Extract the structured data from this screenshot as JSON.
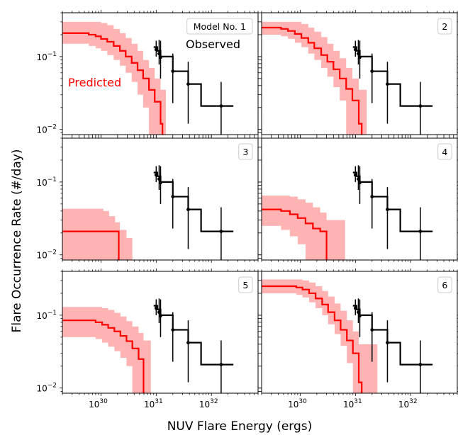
{
  "figure": {
    "xlabel": "NUV Flare Energy (ergs)",
    "ylabel": "Flare Occurrence Rate (#/day)",
    "x_ticks": [
      {
        "base": "10",
        "exp": "30",
        "value": 1e+30
      },
      {
        "base": "10",
        "exp": "31",
        "value": 1e+31
      },
      {
        "base": "10",
        "exp": "32",
        "value": 1e+32
      }
    ],
    "y_ticks": [
      {
        "base": "10",
        "exp": "−1",
        "value": 0.1
      },
      {
        "base": "10",
        "exp": "−2",
        "value": 0.01
      }
    ],
    "annotations": {
      "observed": "Observed",
      "predicted": "Predicted"
    }
  },
  "chart_data": [
    {
      "type": "line",
      "panel_label": "Model No. 1",
      "xscale": "log",
      "yscale": "log",
      "xlim": [
        2e+29,
        7e+32
      ],
      "ylim": [
        0.0085,
        0.4
      ],
      "observed": {
        "color": "#000000",
        "step_x": [
          9e+30,
          1.05e+31,
          1.2e+31,
          2e+31,
          3.8e+31,
          6.5e+31,
          2.5e+32
        ],
        "step_y": [
          0.135,
          0.12,
          0.1,
          0.063,
          0.042,
          0.021
        ],
        "points": [
          {
            "x": 1e+31,
            "y": 0.125,
            "yerr": [
              0.1,
              0.165
            ]
          },
          {
            "x": 1.13e+31,
            "y": 0.11,
            "yerr": [
              0.078,
              0.17
            ]
          },
          {
            "x": 1.2e+31,
            "y": 0.098,
            "yerr": [
              0.05,
              0.165
            ]
          },
          {
            "x": 2e+31,
            "y": 0.063,
            "yerr": [
              0.023,
              0.11
            ]
          },
          {
            "x": 3.8e+31,
            "y": 0.042,
            "yerr": [
              0.012,
              0.085
            ]
          },
          {
            "x": 1.5e+32,
            "y": 0.021,
            "yerr": [
              0.0085,
              0.045
            ]
          }
        ]
      },
      "predicted": {
        "color": "#ff0000",
        "band_color": "#ffb3b3",
        "step_x": [
          2e+29,
          6e+29,
          8e+29,
          1e+30,
          1.3e+30,
          1.7e+30,
          2.2e+30,
          2.8e+30,
          3.6e+30,
          4.6e+30,
          5.8e+30,
          7.4e+30,
          9.4e+30,
          1.2e+31,
          1.3e+31
        ],
        "step_y": [
          0.21,
          0.2,
          0.19,
          0.175,
          0.16,
          0.14,
          0.12,
          0.1,
          0.082,
          0.065,
          0.05,
          0.035,
          0.024,
          0.012
        ],
        "band_upper": [
          0.3,
          0.3,
          0.3,
          0.29,
          0.27,
          0.24,
          0.21,
          0.18,
          0.15,
          0.12,
          0.09,
          0.07,
          0.05,
          0.035
        ],
        "band_lower": [
          0.15,
          0.14,
          0.13,
          0.12,
          0.105,
          0.09,
          0.075,
          0.06,
          0.045,
          0.03,
          0.02,
          0.0085,
          0.0085,
          0.0085
        ],
        "band_x_end": 1.5e+31
      }
    },
    {
      "type": "line",
      "panel_label": "2",
      "xscale": "log",
      "yscale": "log",
      "xlim": [
        2e+29,
        7e+32
      ],
      "ylim": [
        0.0085,
        0.4
      ],
      "observed": {
        "color": "#000000",
        "step_x": [
          9e+30,
          1.05e+31,
          1.2e+31,
          2e+31,
          3.8e+31,
          6.5e+31,
          2.5e+32
        ],
        "step_y": [
          0.135,
          0.12,
          0.1,
          0.063,
          0.042,
          0.021
        ],
        "points": [
          {
            "x": 1e+31,
            "y": 0.125,
            "yerr": [
              0.1,
              0.165
            ]
          },
          {
            "x": 1.13e+31,
            "y": 0.11,
            "yerr": [
              0.078,
              0.17
            ]
          },
          {
            "x": 1.2e+31,
            "y": 0.098,
            "yerr": [
              0.05,
              0.165
            ]
          },
          {
            "x": 2e+31,
            "y": 0.063,
            "yerr": [
              0.023,
              0.11
            ]
          },
          {
            "x": 3.8e+31,
            "y": 0.042,
            "yerr": [
              0.012,
              0.085
            ]
          },
          {
            "x": 1.5e+32,
            "y": 0.021,
            "yerr": [
              0.0085,
              0.045
            ]
          }
        ]
      },
      "predicted": {
        "color": "#ff0000",
        "band_color": "#ffb3b3",
        "step_x": [
          2e+29,
          4.5e+29,
          6e+29,
          8e+29,
          1.05e+30,
          1.4e+30,
          1.8e+30,
          2.4e+30,
          3.1e+30,
          4e+30,
          5.2e+30,
          6.8e+30,
          8.8e+30,
          1.15e+31,
          1.3e+31
        ],
        "step_y": [
          0.25,
          0.24,
          0.225,
          0.205,
          0.18,
          0.155,
          0.13,
          0.105,
          0.085,
          0.067,
          0.05,
          0.036,
          0.025,
          0.012
        ],
        "band_upper": [
          0.3,
          0.3,
          0.3,
          0.3,
          0.28,
          0.25,
          0.22,
          0.185,
          0.15,
          0.12,
          0.095,
          0.07,
          0.05,
          0.035
        ],
        "band_lower": [
          0.2,
          0.19,
          0.175,
          0.155,
          0.135,
          0.11,
          0.09,
          0.07,
          0.053,
          0.038,
          0.025,
          0.0085,
          0.0085,
          0.0085
        ],
        "band_x_end": 1.6e+31
      }
    },
    {
      "type": "line",
      "panel_label": "3",
      "xscale": "log",
      "yscale": "log",
      "xlim": [
        2e+29,
        7e+32
      ],
      "ylim": [
        0.0085,
        0.4
      ],
      "observed": {
        "color": "#000000",
        "step_x": [
          9e+30,
          1.05e+31,
          1.2e+31,
          2e+31,
          3.8e+31,
          6.5e+31,
          2.5e+32
        ],
        "step_y": [
          0.135,
          0.12,
          0.1,
          0.063,
          0.042,
          0.021
        ],
        "points": [
          {
            "x": 1e+31,
            "y": 0.125,
            "yerr": [
              0.1,
              0.165
            ]
          },
          {
            "x": 1.13e+31,
            "y": 0.11,
            "yerr": [
              0.078,
              0.17
            ]
          },
          {
            "x": 1.2e+31,
            "y": 0.098,
            "yerr": [
              0.05,
              0.165
            ]
          },
          {
            "x": 2e+31,
            "y": 0.063,
            "yerr": [
              0.023,
              0.11
            ]
          },
          {
            "x": 3.8e+31,
            "y": 0.042,
            "yerr": [
              0.012,
              0.085
            ]
          },
          {
            "x": 1.5e+32,
            "y": 0.021,
            "yerr": [
              0.0085,
              0.045
            ]
          }
        ]
      },
      "predicted": {
        "color": "#ff0000",
        "band_color": "#ffb3b3",
        "step_x": [
          2e+29,
          2.1e+30,
          2.15e+30
        ],
        "step_y": [
          0.021,
          0.0085
        ],
        "band_upper": [
          0.043,
          0.043
        ],
        "band_lower": [
          0.0085,
          0.0085
        ],
        "band_steps": [
          {
            "x": 2e+29,
            "upper": 0.043
          },
          {
            "x": 1.1e+30,
            "upper": 0.04
          },
          {
            "x": 1.4e+30,
            "upper": 0.034
          },
          {
            "x": 1.8e+30,
            "upper": 0.028
          },
          {
            "x": 2.2e+30,
            "upper": 0.022
          },
          {
            "x": 2.9e+30,
            "upper": 0.017
          },
          {
            "x": 3.7e+30,
            "upper": 0.0085
          }
        ],
        "band_x_end": 3.7e+30
      }
    },
    {
      "type": "line",
      "panel_label": "4",
      "xscale": "log",
      "yscale": "log",
      "xlim": [
        2e+29,
        7e+32
      ],
      "ylim": [
        0.0085,
        0.4
      ],
      "observed": {
        "color": "#000000",
        "step_x": [
          9e+30,
          1.05e+31,
          1.2e+31,
          2e+31,
          3.8e+31,
          6.5e+31,
          2.5e+32
        ],
        "step_y": [
          0.135,
          0.12,
          0.1,
          0.063,
          0.042,
          0.021
        ],
        "points": [
          {
            "x": 1e+31,
            "y": 0.125,
            "yerr": [
              0.1,
              0.165
            ]
          },
          {
            "x": 1.13e+31,
            "y": 0.11,
            "yerr": [
              0.078,
              0.17
            ]
          },
          {
            "x": 1.2e+31,
            "y": 0.098,
            "yerr": [
              0.05,
              0.165
            ]
          },
          {
            "x": 2e+31,
            "y": 0.063,
            "yerr": [
              0.023,
              0.11
            ]
          },
          {
            "x": 3.8e+31,
            "y": 0.042,
            "yerr": [
              0.012,
              0.085
            ]
          },
          {
            "x": 1.5e+32,
            "y": 0.021,
            "yerr": [
              0.0085,
              0.045
            ]
          }
        ]
      },
      "predicted": {
        "color": "#ff0000",
        "band_color": "#ffb3b3",
        "step_x": [
          2e+29,
          4.5e+29,
          6.5e+29,
          9e+29,
          1.25e+30,
          1.7e+30,
          2.3e+30,
          3e+30,
          3.1e+30
        ],
        "step_y": [
          0.042,
          0.04,
          0.036,
          0.032,
          0.027,
          0.023,
          0.021,
          0.0085
        ],
        "band_upper": [
          0.065,
          0.065,
          0.063,
          0.058,
          0.052,
          0.045,
          0.038,
          0.03
        ],
        "band_lower": [
          0.025,
          0.022,
          0.018,
          0.014,
          0.0085,
          0.0085,
          0.0085,
          0.0085
        ],
        "band_x_end": 6.5e+30
      }
    },
    {
      "type": "line",
      "panel_label": "5",
      "xscale": "log",
      "yscale": "log",
      "xlim": [
        2e+29,
        7e+32
      ],
      "ylim": [
        0.0085,
        0.4
      ],
      "observed": {
        "color": "#000000",
        "step_x": [
          9e+30,
          1.05e+31,
          1.2e+31,
          2e+31,
          3.8e+31,
          6.5e+31,
          2.5e+32
        ],
        "step_y": [
          0.135,
          0.12,
          0.1,
          0.063,
          0.042,
          0.021
        ],
        "points": [
          {
            "x": 1e+31,
            "y": 0.125,
            "yerr": [
              0.1,
              0.165
            ]
          },
          {
            "x": 1.13e+31,
            "y": 0.11,
            "yerr": [
              0.078,
              0.17
            ]
          },
          {
            "x": 1.2e+31,
            "y": 0.098,
            "yerr": [
              0.05,
              0.165
            ]
          },
          {
            "x": 2e+31,
            "y": 0.063,
            "yerr": [
              0.023,
              0.11
            ]
          },
          {
            "x": 3.8e+31,
            "y": 0.042,
            "yerr": [
              0.012,
              0.085
            ]
          },
          {
            "x": 1.5e+32,
            "y": 0.021,
            "yerr": [
              0.0085,
              0.045
            ]
          }
        ]
      },
      "predicted": {
        "color": "#ff0000",
        "band_color": "#ffb3b3",
        "step_x": [
          2e+29,
          8e+29,
          1.05e+30,
          1.35e+30,
          1.75e+30,
          2.25e+30,
          2.9e+30,
          3.7e+30,
          4.8e+30,
          5.9e+30,
          6e+30
        ],
        "step_y": [
          0.085,
          0.08,
          0.074,
          0.067,
          0.06,
          0.052,
          0.044,
          0.035,
          0.025,
          0.0085
        ],
        "band_upper": [
          0.13,
          0.13,
          0.125,
          0.118,
          0.108,
          0.096,
          0.083,
          0.07,
          0.057,
          0.045
        ],
        "band_lower": [
          0.05,
          0.047,
          0.042,
          0.037,
          0.032,
          0.026,
          0.02,
          0.0085,
          0.0085,
          0.0085
        ],
        "band_x_end": 8e+30
      }
    },
    {
      "type": "line",
      "panel_label": "6",
      "xscale": "log",
      "yscale": "log",
      "xlim": [
        2e+29,
        7e+32
      ],
      "ylim": [
        0.0085,
        0.4
      ],
      "observed": {
        "color": "#000000",
        "step_x": [
          9e+30,
          1.05e+31,
          1.2e+31,
          2e+31,
          3.8e+31,
          6.5e+31,
          2.5e+32
        ],
        "step_y": [
          0.135,
          0.12,
          0.1,
          0.063,
          0.042,
          0.021
        ],
        "points": [
          {
            "x": 1e+31,
            "y": 0.125,
            "yerr": [
              0.1,
              0.165
            ]
          },
          {
            "x": 1.13e+31,
            "y": 0.11,
            "yerr": [
              0.078,
              0.17
            ]
          },
          {
            "x": 1.2e+31,
            "y": 0.098,
            "yerr": [
              0.05,
              0.165
            ]
          },
          {
            "x": 2e+31,
            "y": 0.063,
            "yerr": [
              0.023,
              0.11
            ]
          },
          {
            "x": 3.8e+31,
            "y": 0.042,
            "yerr": [
              0.012,
              0.085
            ]
          },
          {
            "x": 1.5e+32,
            "y": 0.021,
            "yerr": [
              0.0085,
              0.045
            ]
          }
        ]
      },
      "predicted": {
        "color": "#ff0000",
        "band_color": "#ffb3b3",
        "step_x": [
          2e+29,
          8.5e+29,
          1.1e+30,
          1.45e+30,
          1.9e+30,
          2.5e+30,
          3.2e+30,
          4.2e+30,
          5.4e+30,
          7e+30,
          9e+30,
          1.15e+31,
          1.3e+31
        ],
        "step_y": [
          0.25,
          0.24,
          0.225,
          0.2,
          0.17,
          0.14,
          0.11,
          0.085,
          0.063,
          0.045,
          0.03,
          0.012
        ],
        "band_upper": [
          0.31,
          0.31,
          0.3,
          0.28,
          0.25,
          0.215,
          0.18,
          0.145,
          0.115,
          0.085,
          0.06,
          0.04
        ],
        "band_lower": [
          0.2,
          0.19,
          0.175,
          0.15,
          0.125,
          0.1,
          0.075,
          0.055,
          0.038,
          0.022,
          0.0085,
          0.0085
        ],
        "band_x_end": 2.5e+31
      }
    }
  ]
}
